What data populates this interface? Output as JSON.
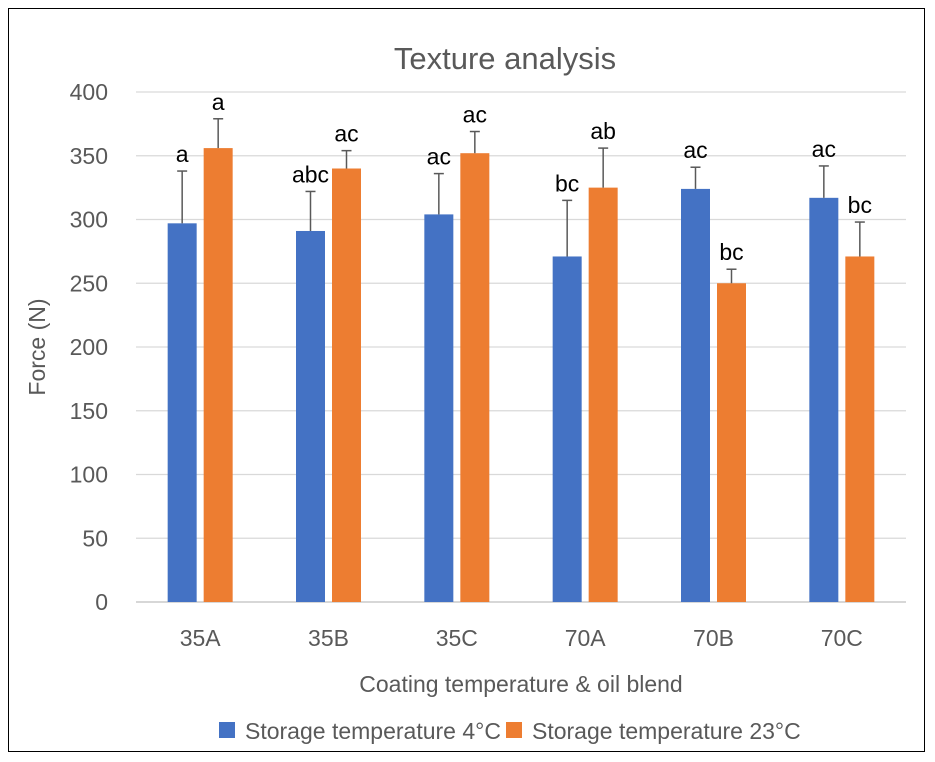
{
  "chart_data": {
    "type": "bar",
    "title": "Texture analysis",
    "xlabel": "Coating temperature & oil blend",
    "ylabel": "Force (N)",
    "ylim": [
      0,
      400
    ],
    "yticks": [
      0,
      50,
      100,
      150,
      200,
      250,
      300,
      350,
      400
    ],
    "grid": true,
    "legend_position": "bottom",
    "categories": [
      "35A",
      "35B",
      "35C",
      "70A",
      "70B",
      "70C"
    ],
    "series": [
      {
        "name": "Storage temperature 4°C",
        "color": "#4472c4",
        "values": [
          297,
          291,
          304,
          271,
          324,
          317
        ],
        "error_plus": [
          41,
          31,
          32,
          44,
          17,
          25
        ],
        "labels": [
          "a",
          "abc",
          "ac",
          "bc",
          "ac",
          "ac"
        ]
      },
      {
        "name": "Storage temperature 23°C",
        "color": "#ed7d31",
        "values": [
          356,
          340,
          352,
          325,
          250,
          271
        ],
        "error_plus": [
          23,
          14,
          17,
          31,
          11,
          27
        ],
        "labels": [
          "a",
          "ac",
          "ac",
          "ab",
          "bc",
          "bc"
        ]
      }
    ]
  }
}
